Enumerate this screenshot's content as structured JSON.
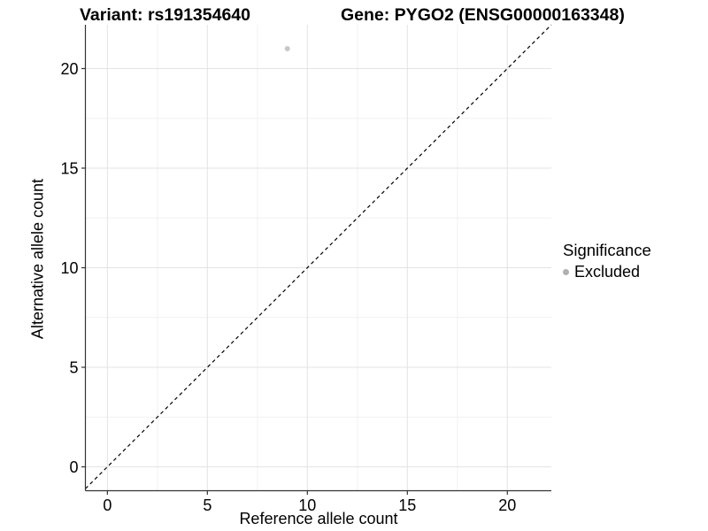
{
  "header": {
    "variant_title": "Variant: rs191354640",
    "gene_title": "Gene: PYGO2 (ENSG00000163348)"
  },
  "chart_data": {
    "type": "scatter",
    "xlabel": "Reference allele count",
    "ylabel": "Alternative allele count",
    "xlim": [
      -1.1,
      22.2
    ],
    "ylim": [
      -1.2,
      22.2
    ],
    "xticks": [
      0,
      5,
      10,
      15,
      20
    ],
    "yticks": [
      0,
      5,
      10,
      15,
      20
    ],
    "minor_ticks": [
      2.5,
      7.5,
      12.5,
      17.5
    ],
    "grid": "major+minor",
    "points": [
      {
        "x": 9,
        "y": 21,
        "series": "Excluded"
      }
    ],
    "reference_line": {
      "kind": "identity",
      "slope": 1,
      "intercept": 0,
      "style": "dashed"
    },
    "colors": {
      "point": "#c8c8c8",
      "reference_line": "#000000",
      "grid_major": "#e3e3e3",
      "grid_minor": "#f1f1f1",
      "axis_line": "#333333",
      "tick_mark": "#333333",
      "tick_text": "#000000"
    }
  },
  "legend": {
    "title": "Significance",
    "position": "right",
    "items": [
      {
        "label": "Excluded",
        "color": "#b0b0b0"
      }
    ]
  }
}
